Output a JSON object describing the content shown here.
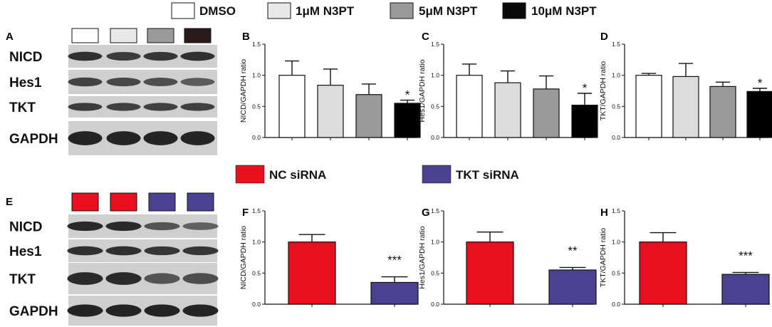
{
  "legend_top": [
    {
      "label": "DMSO",
      "color": "#ffffff"
    },
    {
      "label": "1μM N3PT",
      "color": "#e8e8e8"
    },
    {
      "label": "5μM N3PT",
      "color": "#9a9a9a"
    },
    {
      "label": "10μM N3PT",
      "color": "#0a0a0a"
    }
  ],
  "legend_bottom": [
    {
      "label": "NC siRNA",
      "color": "#e8101f"
    },
    {
      "label": "TKT siRNA",
      "color": "#4a4290"
    }
  ],
  "blot_top": {
    "letter": "A",
    "lane_colors": [
      "#ffffff",
      "#e8e8e8",
      "#9a9a9a",
      "#2a1a1a"
    ],
    "rows": [
      {
        "name": "NICD",
        "intensity": [
          0.85,
          0.75,
          0.8,
          0.85
        ]
      },
      {
        "name": "Hes1",
        "intensity": [
          0.7,
          0.65,
          0.6,
          0.5
        ]
      },
      {
        "name": "TKT",
        "intensity": [
          0.75,
          0.72,
          0.72,
          0.72
        ]
      },
      {
        "name": "GAPDH",
        "intensity": [
          0.95,
          0.95,
          0.95,
          0.95
        ]
      }
    ]
  },
  "blot_bottom": {
    "letter": "E",
    "lane_colors": [
      "#e8101f",
      "#e8101f",
      "#4a4290",
      "#4a4290"
    ],
    "rows": [
      {
        "name": "NICD",
        "intensity": [
          0.9,
          0.9,
          0.55,
          0.45
        ]
      },
      {
        "name": "Hes1",
        "intensity": [
          0.85,
          0.85,
          0.8,
          0.8
        ]
      },
      {
        "name": "TKT",
        "intensity": [
          0.9,
          0.9,
          0.55,
          0.6
        ]
      },
      {
        "name": "GAPDH",
        "intensity": [
          0.95,
          0.95,
          0.95,
          0.95
        ]
      }
    ]
  },
  "chart_data": [
    {
      "letter": "B",
      "type": "bar",
      "ylabel": "NICD/GAPDH ratio",
      "ylim": [
        0,
        1.5
      ],
      "yticks": [
        "0.0",
        "0.5",
        "1.0",
        "1.5"
      ],
      "categories": [
        "DMSO",
        "1μM N3PT",
        "5μM N3PT",
        "10μM N3PT"
      ],
      "values": [
        1.0,
        0.84,
        0.69,
        0.55
      ],
      "errors": [
        0.23,
        0.26,
        0.17,
        0.05
      ],
      "colors": [
        "#ffffff",
        "#dcdcdc",
        "#9a9a9a",
        "#000000"
      ],
      "significance": [
        "",
        "",
        "",
        "*"
      ]
    },
    {
      "letter": "C",
      "type": "bar",
      "ylabel": "Hes1/GAPDH ratio",
      "ylim": [
        0,
        1.5
      ],
      "yticks": [
        "0.0",
        "0.5",
        "1.0",
        "1.5"
      ],
      "categories": [
        "DMSO",
        "1μM N3PT",
        "5μM N3PT",
        "10μM N3PT"
      ],
      "values": [
        1.0,
        0.88,
        0.78,
        0.52
      ],
      "errors": [
        0.18,
        0.19,
        0.21,
        0.19
      ],
      "colors": [
        "#ffffff",
        "#dcdcdc",
        "#9a9a9a",
        "#000000"
      ],
      "significance": [
        "",
        "",
        "",
        "*"
      ]
    },
    {
      "letter": "D",
      "type": "bar",
      "ylabel": "TKT/GAPDH ratio",
      "ylim": [
        0,
        1.5
      ],
      "yticks": [
        "0.0",
        "0.5",
        "1.0",
        "1.5"
      ],
      "categories": [
        "DMSO",
        "1μM N3PT",
        "5μM N3PT",
        "10μM N3PT"
      ],
      "values": [
        1.0,
        0.98,
        0.82,
        0.74
      ],
      "errors": [
        0.03,
        0.21,
        0.07,
        0.05
      ],
      "colors": [
        "#ffffff",
        "#dcdcdc",
        "#9a9a9a",
        "#000000"
      ],
      "significance": [
        "",
        "",
        "",
        "*"
      ]
    },
    {
      "letter": "F",
      "type": "bar",
      "ylabel": "NICD/GAPDH ratio",
      "ylim": [
        0,
        1.5
      ],
      "yticks": [
        "0.0",
        "0.5",
        "1.0",
        "1.5"
      ],
      "categories": [
        "NC siRNA",
        "TKT siRNA"
      ],
      "values": [
        1.0,
        0.35
      ],
      "errors": [
        0.12,
        0.09
      ],
      "colors": [
        "#e8101f",
        "#4a4290"
      ],
      "significance": [
        "",
        "***"
      ]
    },
    {
      "letter": "G",
      "type": "bar",
      "ylabel": "Hes1/GAPDH ratio",
      "ylim": [
        0,
        1.5
      ],
      "yticks": [
        "0.0",
        "0.5",
        "1.0",
        "1.5"
      ],
      "categories": [
        "NC siRNA",
        "TKT siRNA"
      ],
      "values": [
        1.0,
        0.55
      ],
      "errors": [
        0.16,
        0.04
      ],
      "colors": [
        "#e8101f",
        "#4a4290"
      ],
      "significance": [
        "",
        "**"
      ]
    },
    {
      "letter": "H",
      "type": "bar",
      "ylabel": "TKT/GAPDH ratio",
      "ylim": [
        0,
        1.5
      ],
      "yticks": [
        "0.0",
        "0.5",
        "1.0",
        "1.5"
      ],
      "categories": [
        "NC siRNA",
        "TKT siRNA"
      ],
      "values": [
        1.0,
        0.48
      ],
      "errors": [
        0.15,
        0.03
      ],
      "colors": [
        "#e8101f",
        "#4a4290"
      ],
      "significance": [
        "",
        "***"
      ]
    }
  ]
}
